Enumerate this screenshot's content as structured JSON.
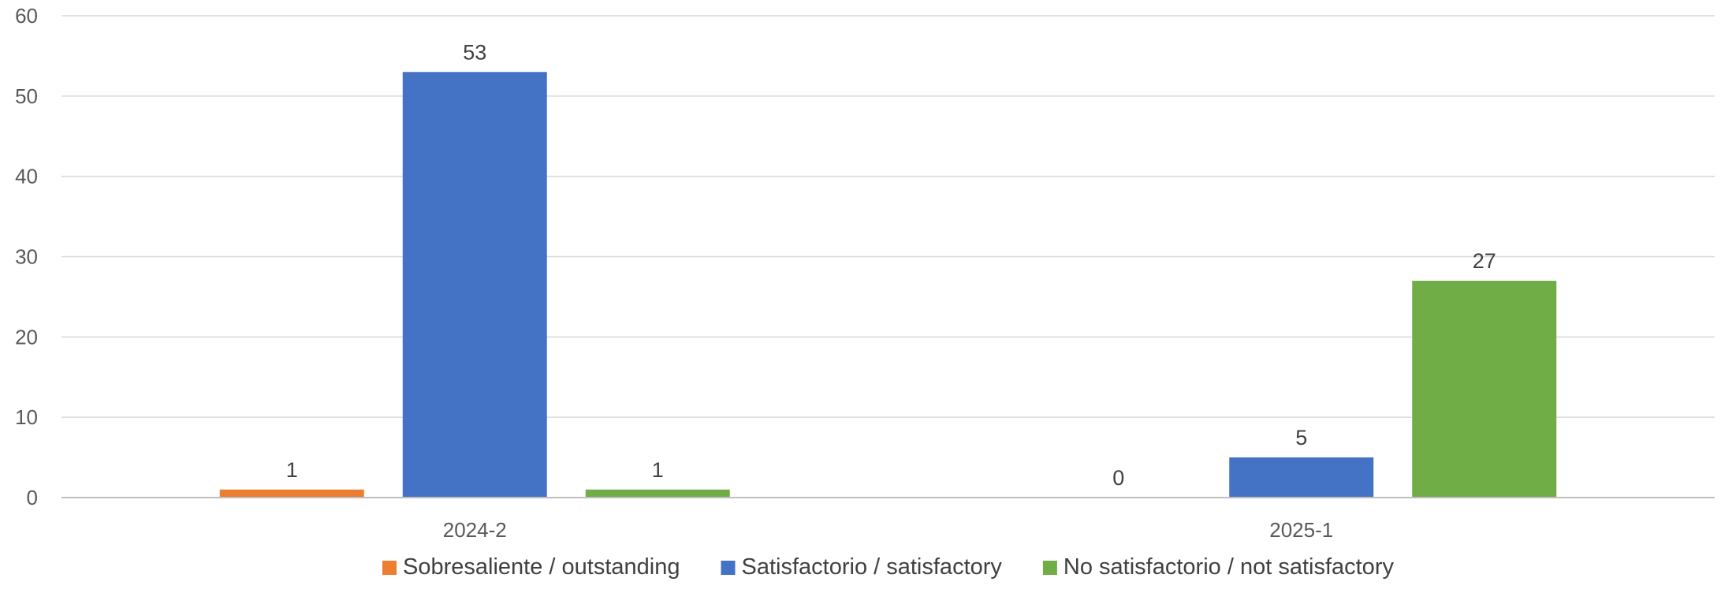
{
  "chart_data": {
    "type": "bar",
    "categories": [
      "2024-2",
      "2025-1"
    ],
    "series": [
      {
        "name": "Sobresaliente / outstanding",
        "color": "#ED7D31",
        "values": [
          1,
          0
        ]
      },
      {
        "name": "Satisfactorio / satisfactory",
        "color": "#4472C4",
        "values": [
          53,
          5
        ]
      },
      {
        "name": "No satisfactorio / not satisfactory",
        "color": "#70AD47",
        "values": [
          1,
          27
        ]
      }
    ],
    "ylim": [
      0,
      60
    ],
    "yticks": [
      0,
      10,
      20,
      30,
      40,
      50,
      60
    ],
    "grid": true,
    "legend": "bottom",
    "data_labels": true
  }
}
